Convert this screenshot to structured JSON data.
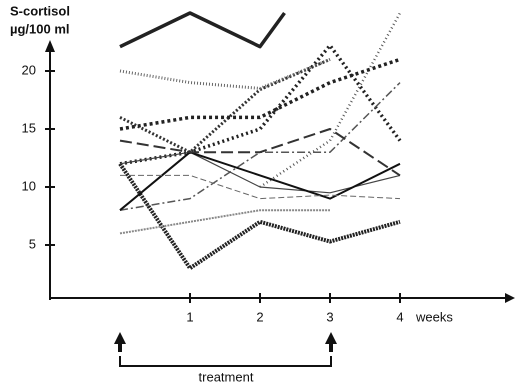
{
  "chart_data": {
    "type": "line",
    "y_label_line1": "S-cortisol",
    "y_label_line2": "µg/100 ml",
    "x_label": "weeks",
    "annotation": "treatment",
    "xlim": [
      -1,
      5.7
    ],
    "ylim": [
      0,
      26
    ],
    "xticks": [
      1,
      2,
      3,
      4
    ],
    "yticks": [
      5,
      10,
      15,
      20
    ],
    "series": [
      {
        "color": "#222",
        "width": 3.5,
        "dash": "none",
        "x": [
          0,
          1,
          2,
          2.35
        ],
        "values": [
          22.1,
          25,
          22.1,
          25
        ]
      },
      {
        "color": "#222",
        "width": 4,
        "dash": "2 1",
        "x": [
          0,
          1,
          2,
          3,
          4
        ],
        "values": [
          12,
          3,
          7,
          5.3,
          7
        ]
      },
      {
        "color": "#555",
        "width": 2.5,
        "dash": "1 3",
        "x": [
          2,
          3,
          4
        ],
        "values": [
          10,
          14,
          25
        ]
      },
      {
        "color": "#333",
        "width": 3,
        "dash": "2 2",
        "x": [
          0,
          1,
          2,
          3
        ],
        "values": [
          16,
          13,
          18.4,
          21
        ]
      },
      {
        "color": "#222",
        "width": 3.5,
        "dash": "2 3",
        "x": [
          0,
          1,
          2,
          3,
          4
        ],
        "values": [
          12,
          13,
          15,
          22.2,
          14
        ]
      },
      {
        "color": "#666",
        "width": 3,
        "dash": "1 2",
        "x": [
          0,
          1,
          2,
          3
        ],
        "values": [
          20,
          19,
          18.5,
          21
        ]
      },
      {
        "color": "#222",
        "width": 3.5,
        "dash": "3 3",
        "x": [
          0,
          1,
          2,
          3,
          4
        ],
        "values": [
          15,
          16,
          16,
          19,
          21
        ]
      },
      {
        "color": "#555",
        "width": 1.5,
        "dash": "8 3 2 3",
        "x": [
          0,
          1,
          2,
          3,
          4
        ],
        "values": [
          8,
          9,
          13,
          13,
          19
        ]
      },
      {
        "color": "#444",
        "width": 1.2,
        "dash": "none",
        "x": [
          0,
          1,
          2,
          3,
          4
        ],
        "values": [
          12,
          13,
          10,
          9.5,
          11
        ]
      },
      {
        "color": "#111",
        "width": 2,
        "dash": "none",
        "x": [
          0,
          1,
          2,
          3,
          4
        ],
        "values": [
          8,
          13,
          11,
          9,
          12
        ]
      },
      {
        "color": "#333",
        "width": 2,
        "dash": "12 5",
        "x": [
          0,
          1,
          2,
          3,
          4
        ],
        "values": [
          14,
          13,
          13,
          15,
          11
        ]
      },
      {
        "color": "#888",
        "width": 2,
        "dash": "2 1",
        "x": [
          0,
          1,
          2,
          3
        ],
        "values": [
          6,
          7,
          8,
          8
        ]
      },
      {
        "color": "#666",
        "width": 1,
        "dash": "6 3",
        "x": [
          0,
          1,
          2,
          3,
          4
        ],
        "values": [
          11,
          11,
          9,
          9.3,
          9
        ]
      }
    ]
  }
}
